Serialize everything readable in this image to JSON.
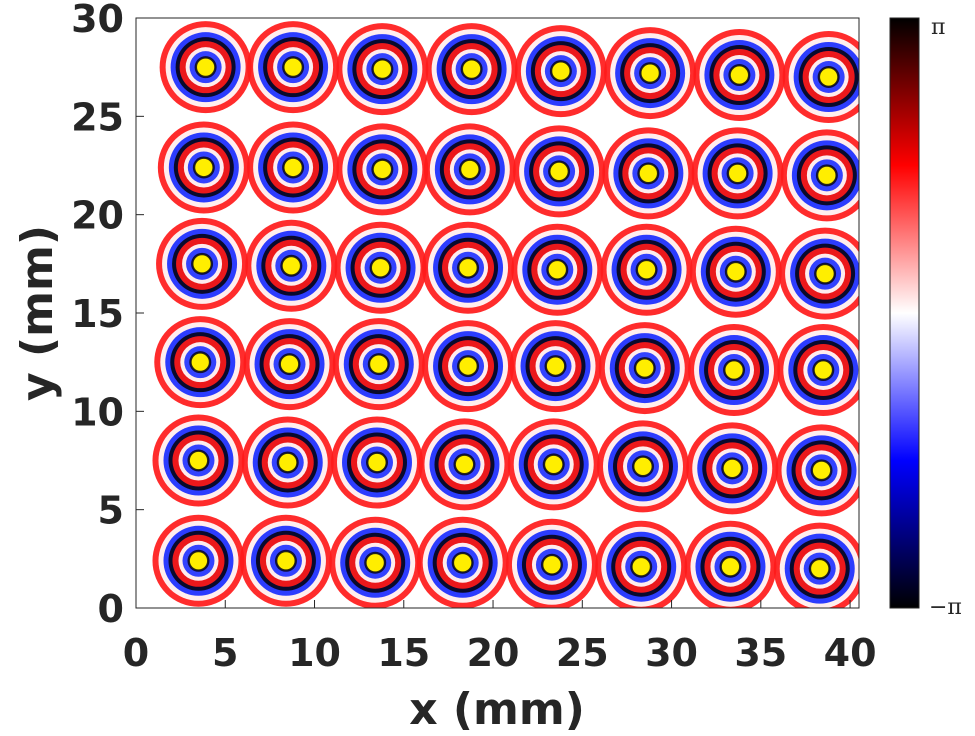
{
  "chart_data": {
    "type": "heatmap",
    "xlabel": "x (mm)",
    "ylabel": "y (mm)",
    "xlim": [
      0,
      40.5
    ],
    "ylim": [
      0,
      30
    ],
    "xticks": [
      0,
      5,
      10,
      15,
      20,
      25,
      30,
      35,
      40
    ],
    "yticks": [
      0,
      5,
      10,
      15,
      20,
      25,
      30
    ],
    "colorbar": {
      "min_label": "−π",
      "max_label": "π",
      "colors": [
        "#000000",
        "#0000ff",
        "#ffffff",
        "#ff0000",
        "#000000"
      ]
    },
    "marker_color": "#ffee00",
    "markers": [
      {
        "x": 3.9,
        "y": 27.5
      },
      {
        "x": 8.8,
        "y": 27.5
      },
      {
        "x": 13.8,
        "y": 27.4
      },
      {
        "x": 18.8,
        "y": 27.4
      },
      {
        "x": 23.8,
        "y": 27.3
      },
      {
        "x": 28.8,
        "y": 27.2
      },
      {
        "x": 33.8,
        "y": 27.1
      },
      {
        "x": 38.8,
        "y": 27.0
      },
      {
        "x": 3.8,
        "y": 22.4
      },
      {
        "x": 8.8,
        "y": 22.4
      },
      {
        "x": 13.8,
        "y": 22.3
      },
      {
        "x": 18.7,
        "y": 22.3
      },
      {
        "x": 23.7,
        "y": 22.2
      },
      {
        "x": 28.7,
        "y": 22.1
      },
      {
        "x": 33.7,
        "y": 22.1
      },
      {
        "x": 38.7,
        "y": 22.0
      },
      {
        "x": 3.7,
        "y": 17.5
      },
      {
        "x": 8.7,
        "y": 17.4
      },
      {
        "x": 13.7,
        "y": 17.3
      },
      {
        "x": 18.6,
        "y": 17.3
      },
      {
        "x": 23.6,
        "y": 17.2
      },
      {
        "x": 28.6,
        "y": 17.2
      },
      {
        "x": 33.6,
        "y": 17.1
      },
      {
        "x": 38.6,
        "y": 17.0
      },
      {
        "x": 3.6,
        "y": 12.5
      },
      {
        "x": 8.6,
        "y": 12.4
      },
      {
        "x": 13.6,
        "y": 12.4
      },
      {
        "x": 18.6,
        "y": 12.3
      },
      {
        "x": 23.5,
        "y": 12.3
      },
      {
        "x": 28.5,
        "y": 12.2
      },
      {
        "x": 33.5,
        "y": 12.1
      },
      {
        "x": 38.5,
        "y": 12.1
      },
      {
        "x": 3.5,
        "y": 7.5
      },
      {
        "x": 8.5,
        "y": 7.4
      },
      {
        "x": 13.5,
        "y": 7.4
      },
      {
        "x": 18.4,
        "y": 7.3
      },
      {
        "x": 23.4,
        "y": 7.3
      },
      {
        "x": 28.4,
        "y": 7.2
      },
      {
        "x": 33.4,
        "y": 7.1
      },
      {
        "x": 38.4,
        "y": 7.0
      },
      {
        "x": 3.5,
        "y": 2.4
      },
      {
        "x": 8.4,
        "y": 2.4
      },
      {
        "x": 13.4,
        "y": 2.3
      },
      {
        "x": 18.3,
        "y": 2.3
      },
      {
        "x": 23.3,
        "y": 2.2
      },
      {
        "x": 28.3,
        "y": 2.1
      },
      {
        "x": 33.3,
        "y": 2.1
      },
      {
        "x": 38.3,
        "y": 2.0
      }
    ]
  }
}
